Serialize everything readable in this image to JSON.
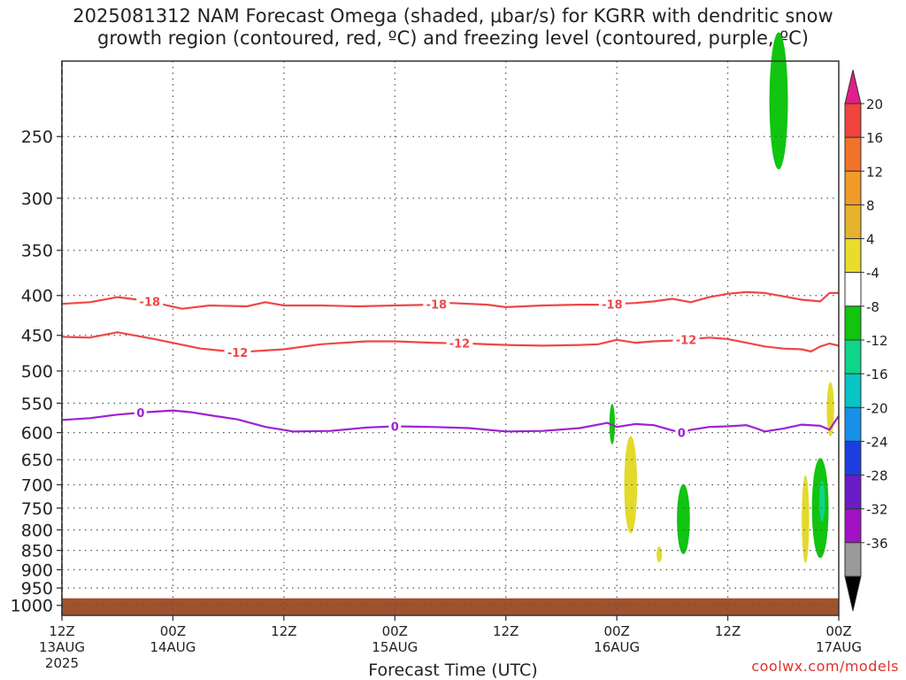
{
  "title": {
    "line1": "2025081312 NAM Forecast Omega (shaded, μbar/s) for KGRR with dendritic snow",
    "line2": "growth region (contoured, red, ºC) and freezing level (contoured, purple, ºC)"
  },
  "credit": "coolwx.com/models",
  "chart_data": {
    "type": "contour",
    "xlabel": "Forecast Time (UTC)",
    "x_ticks": [
      {
        "t": 0,
        "line1": "12Z",
        "line2": "13AUG",
        "line3": "2025"
      },
      {
        "t": 12,
        "line1": "00Z",
        "line2": "14AUG",
        "line3": ""
      },
      {
        "t": 24,
        "line1": "12Z",
        "line2": "",
        "line3": ""
      },
      {
        "t": 36,
        "line1": "00Z",
        "line2": "15AUG",
        "line3": ""
      },
      {
        "t": 48,
        "line1": "12Z",
        "line2": "",
        "line3": ""
      },
      {
        "t": 60,
        "line1": "00Z",
        "line2": "16AUG",
        "line3": ""
      },
      {
        "t": 72,
        "line1": "12Z",
        "line2": "",
        "line3": ""
      },
      {
        "t": 84,
        "line1": "00Z",
        "line2": "17AUG",
        "line3": ""
      }
    ],
    "y_ticks": [
      250,
      300,
      350,
      400,
      450,
      500,
      550,
      600,
      650,
      700,
      750,
      800,
      850,
      900,
      950,
      1000
    ],
    "ylim_hPa": [
      200,
      1030
    ],
    "colorbar": {
      "labels": [
        "20",
        "16",
        "12",
        "8",
        "4",
        "-4",
        "-8",
        "-12",
        "-16",
        "-20",
        "-24",
        "-28",
        "-32",
        "-36"
      ],
      "colors": [
        "#e11e8a",
        "#f0443c",
        "#f3722a",
        "#f19a28",
        "#e7b22b",
        "#e8dc2c",
        "#ffffff",
        "#10c410",
        "#0ed588",
        "#08c4c4",
        "#1790e8",
        "#1c3ee0",
        "#6a1cc8",
        "#a012c4",
        "#9a9a9a",
        "#000000"
      ]
    },
    "contours": [
      {
        "name": "-18 (red)",
        "color": "#ee4747",
        "label": "-18",
        "label_at": [
          9.5,
          40.5,
          59.5
        ],
        "points": [
          [
            0,
            410
          ],
          [
            3,
            408
          ],
          [
            6,
            402
          ],
          [
            9,
            406
          ],
          [
            13,
            416
          ],
          [
            16,
            412
          ],
          [
            20,
            413
          ],
          [
            22,
            408
          ],
          [
            24,
            412
          ],
          [
            28,
            412
          ],
          [
            32,
            413
          ],
          [
            36,
            412
          ],
          [
            40,
            411
          ],
          [
            42,
            409
          ],
          [
            46,
            411
          ],
          [
            48,
            414
          ],
          [
            52,
            412
          ],
          [
            56,
            411
          ],
          [
            58,
            411
          ],
          [
            62,
            409
          ],
          [
            64,
            407
          ],
          [
            66,
            404
          ],
          [
            68,
            408
          ],
          [
            70,
            402
          ],
          [
            72,
            398
          ],
          [
            74,
            396
          ],
          [
            76,
            397
          ],
          [
            78,
            401
          ],
          [
            80,
            405
          ],
          [
            82,
            407
          ],
          [
            83,
            397
          ],
          [
            84,
            397
          ]
        ]
      },
      {
        "name": "-12 (red)",
        "color": "#ee4747",
        "label": "-12",
        "label_at": [
          19,
          43,
          67.5
        ],
        "points": [
          [
            0,
            452
          ],
          [
            3,
            453
          ],
          [
            6,
            446
          ],
          [
            10,
            455
          ],
          [
            15,
            468
          ],
          [
            19,
            473
          ],
          [
            24,
            469
          ],
          [
            28,
            462
          ],
          [
            33,
            458
          ],
          [
            36,
            458
          ],
          [
            40,
            460
          ],
          [
            44,
            461
          ],
          [
            48,
            463
          ],
          [
            52,
            464
          ],
          [
            56,
            463
          ],
          [
            58,
            462
          ],
          [
            60,
            456
          ],
          [
            62,
            460
          ],
          [
            64,
            458
          ],
          [
            66,
            457
          ],
          [
            68,
            455
          ],
          [
            70,
            453
          ],
          [
            72,
            455
          ],
          [
            74,
            460
          ],
          [
            76,
            465
          ],
          [
            78,
            468
          ],
          [
            80,
            469
          ],
          [
            81,
            472
          ],
          [
            82,
            465
          ],
          [
            83,
            461
          ],
          [
            84,
            464
          ]
        ]
      },
      {
        "name": "0 (purple)",
        "color": "#a020d0",
        "label": "0",
        "label_at": [
          8.5,
          36,
          67
        ],
        "points": [
          [
            0,
            578
          ],
          [
            3,
            575
          ],
          [
            6,
            569
          ],
          [
            9,
            565
          ],
          [
            12,
            562
          ],
          [
            14,
            565
          ],
          [
            16,
            570
          ],
          [
            19,
            577
          ],
          [
            22,
            590
          ],
          [
            25,
            598
          ],
          [
            29,
            597
          ],
          [
            33,
            591
          ],
          [
            36,
            589
          ],
          [
            40,
            590
          ],
          [
            44,
            592
          ],
          [
            48,
            598
          ],
          [
            52,
            597
          ],
          [
            56,
            592
          ],
          [
            59,
            583
          ],
          [
            60,
            590
          ],
          [
            62,
            585
          ],
          [
            64,
            587
          ],
          [
            66,
            596
          ],
          [
            67,
            600
          ],
          [
            68,
            595
          ],
          [
            70,
            590
          ],
          [
            72,
            589
          ],
          [
            74,
            587
          ],
          [
            75,
            592
          ],
          [
            76,
            598
          ],
          [
            78,
            593
          ],
          [
            80,
            586
          ],
          [
            82,
            588
          ],
          [
            83,
            595
          ],
          [
            84,
            571
          ]
        ]
      }
    ],
    "omega_regions": [
      {
        "category": "-4 to -8",
        "color": "#10c410",
        "center": [
          77.5,
          225
        ],
        "half": [
          1.0,
          45
        ]
      },
      {
        "category": "4 to 8",
        "color": "#e3da2c",
        "center": [
          61.5,
          700
        ],
        "half": [
          0.7,
          100
        ]
      },
      {
        "category": "4 to 8",
        "color": "#e3da2c",
        "center": [
          64.6,
          860
        ],
        "half": [
          0.3,
          20
        ]
      },
      {
        "category": "-4 to -8",
        "color": "#10c410",
        "center": [
          67.2,
          775
        ],
        "half": [
          0.7,
          80
        ]
      },
      {
        "category": "-4 to -8",
        "color": "#10c410",
        "center": [
          59.5,
          585
        ],
        "half": [
          0.3,
          35
        ]
      },
      {
        "category": "4 to 8",
        "color": "#e3da2c",
        "center": [
          83.1,
          560
        ],
        "half": [
          0.4,
          45
        ]
      },
      {
        "category": "4 to 8",
        "color": "#e3da2c",
        "center": [
          80.4,
          775
        ],
        "half": [
          0.4,
          100
        ]
      },
      {
        "category": "-4 to -8",
        "color": "#10c410",
        "center": [
          82.0,
          750
        ],
        "half": [
          0.9,
          110
        ]
      },
      {
        "category": "-8 to -12",
        "color": "#0ed588",
        "center": [
          82.2,
          735
        ],
        "half": [
          0.3,
          45
        ]
      }
    ],
    "terrain": {
      "color": "#a0522d",
      "from_hPa": 1000
    }
  }
}
